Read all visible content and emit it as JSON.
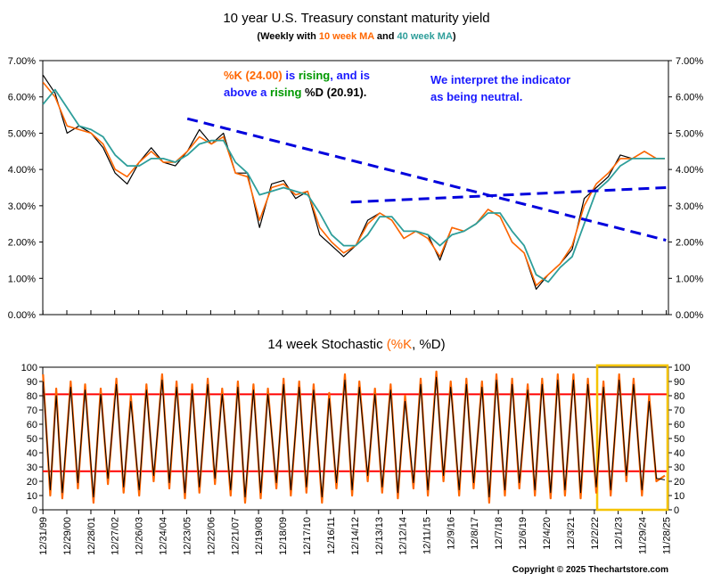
{
  "colors": {
    "price": "#000000",
    "ma10": "#ff6600",
    "ma40": "#2e9e9a",
    "k": "#ff6600",
    "d": "#000000",
    "trendline": "#0000dd",
    "threshold": "#ff0000",
    "highlight": "#f5c400",
    "green": "#009900",
    "blue": "#1a1aff"
  },
  "chart_data": [
    {
      "type": "line",
      "title": "10 year U.S. Treasury constant maturity yield",
      "subtitle_parts": [
        "(Weekly with ",
        "10 week MA",
        " and ",
        "40 week MA",
        ")"
      ],
      "ylim": [
        0,
        7
      ],
      "y_ticks": [
        "0.00%",
        "1.00%",
        "2.00%",
        "3.00%",
        "4.00%",
        "5.00%",
        "6.00%",
        "7.00%"
      ],
      "xlim": [
        1999.99,
        2026.0
      ],
      "grid": false,
      "series": [
        {
          "name": "",
          "x": [
            2000.0,
            2000.5,
            2001.0,
            2001.5,
            2002.0,
            2002.5,
            2003.0,
            2003.5,
            2004.0,
            2004.5,
            2005.0,
            2005.5,
            2006.0,
            2006.5,
            2007.0,
            2007.5,
            2008.0,
            2008.5,
            2009.0,
            2009.5,
            2010.0,
            2010.5,
            2011.0,
            2011.5,
            2012.0,
            2012.5,
            2013.0,
            2013.5,
            2014.0,
            2014.5,
            2015.0,
            2015.5,
            2016.0,
            2016.5,
            2017.0,
            2017.5,
            2018.0,
            2018.5,
            2019.0,
            2019.5,
            2020.0,
            2020.5,
            2021.0,
            2021.5,
            2022.0,
            2022.5,
            2023.0,
            2023.5,
            2024.0,
            2024.5,
            2025.0,
            2025.5,
            2025.85
          ],
          "values": [
            6.6,
            6.1,
            5.0,
            5.2,
            5.0,
            4.6,
            3.9,
            3.6,
            4.2,
            4.6,
            4.2,
            4.1,
            4.5,
            5.1,
            4.7,
            5.0,
            3.9,
            3.9,
            2.4,
            3.6,
            3.7,
            3.2,
            3.4,
            2.2,
            1.9,
            1.6,
            1.9,
            2.6,
            2.8,
            2.6,
            2.1,
            2.3,
            2.2,
            1.5,
            2.4,
            2.3,
            2.5,
            2.9,
            2.7,
            2.0,
            1.7,
            0.7,
            1.1,
            1.4,
            1.8,
            3.2,
            3.5,
            3.8,
            4.4,
            4.3,
            4.5,
            4.3,
            4.3
          ]
        },
        {
          "name": "10 week MA",
          "x": [
            2000.0,
            2000.5,
            2001.0,
            2001.5,
            2002.0,
            2002.5,
            2003.0,
            2003.5,
            2004.0,
            2004.5,
            2005.0,
            2005.5,
            2006.0,
            2006.5,
            2007.0,
            2007.5,
            2008.0,
            2008.5,
            2009.0,
            2009.5,
            2010.0,
            2010.5,
            2011.0,
            2011.5,
            2012.0,
            2012.5,
            2013.0,
            2013.5,
            2014.0,
            2014.5,
            2015.0,
            2015.5,
            2016.0,
            2016.5,
            2017.0,
            2017.5,
            2018.0,
            2018.5,
            2019.0,
            2019.5,
            2020.0,
            2020.5,
            2021.0,
            2021.5,
            2022.0,
            2022.5,
            2023.0,
            2023.5,
            2024.0,
            2024.5,
            2025.0,
            2025.5,
            2025.85
          ],
          "values": [
            6.4,
            6.0,
            5.2,
            5.1,
            5.0,
            4.7,
            4.0,
            3.8,
            4.2,
            4.5,
            4.2,
            4.2,
            4.5,
            4.9,
            4.7,
            4.9,
            3.9,
            3.8,
            2.6,
            3.5,
            3.6,
            3.3,
            3.4,
            2.4,
            2.0,
            1.7,
            1.9,
            2.5,
            2.8,
            2.6,
            2.1,
            2.3,
            2.1,
            1.6,
            2.4,
            2.3,
            2.5,
            2.9,
            2.7,
            2.0,
            1.7,
            0.8,
            1.1,
            1.4,
            1.9,
            3.0,
            3.6,
            3.9,
            4.3,
            4.3,
            4.5,
            4.3,
            4.3
          ]
        },
        {
          "name": "40 week MA",
          "x": [
            2000.0,
            2000.5,
            2001.0,
            2001.5,
            2002.0,
            2002.5,
            2003.0,
            2003.5,
            2004.0,
            2004.5,
            2005.0,
            2005.5,
            2006.0,
            2006.5,
            2007.0,
            2007.5,
            2008.0,
            2008.5,
            2009.0,
            2009.5,
            2010.0,
            2010.5,
            2011.0,
            2011.5,
            2012.0,
            2012.5,
            2013.0,
            2013.5,
            2014.0,
            2014.5,
            2015.0,
            2015.5,
            2016.0,
            2016.5,
            2017.0,
            2017.5,
            2018.0,
            2018.5,
            2019.0,
            2019.5,
            2020.0,
            2020.5,
            2021.0,
            2021.5,
            2022.0,
            2022.5,
            2023.0,
            2023.5,
            2024.0,
            2024.5,
            2025.0,
            2025.5,
            2025.85
          ],
          "values": [
            5.8,
            6.2,
            5.7,
            5.2,
            5.1,
            4.9,
            4.4,
            4.1,
            4.1,
            4.3,
            4.3,
            4.2,
            4.4,
            4.7,
            4.8,
            4.8,
            4.2,
            3.9,
            3.3,
            3.4,
            3.5,
            3.4,
            3.3,
            2.8,
            2.2,
            1.9,
            1.9,
            2.2,
            2.7,
            2.7,
            2.3,
            2.3,
            2.2,
            1.9,
            2.2,
            2.3,
            2.5,
            2.8,
            2.8,
            2.3,
            1.9,
            1.1,
            0.9,
            1.3,
            1.6,
            2.5,
            3.4,
            3.7,
            4.1,
            4.3,
            4.3,
            4.3,
            4.3
          ]
        }
      ],
      "trendlines": [
        {
          "x": [
            2006.0,
            2025.9
          ],
          "values": [
            5.4,
            2.05
          ]
        },
        {
          "x": [
            2012.8,
            2025.9
          ],
          "values": [
            3.1,
            3.5
          ]
        }
      ],
      "annotations": {
        "line1": [
          {
            "text": "%K (24.00)",
            "color": "orange"
          },
          {
            "text": " is ",
            "color": "blue"
          },
          {
            "text": "rising",
            "color": "green"
          },
          {
            "text": ", and is",
            "color": "blue"
          }
        ],
        "line2": [
          {
            "text": "above a ",
            "color": "blue"
          },
          {
            "text": "rising",
            "color": "green"
          },
          {
            "text": " %D ",
            "color": "black"
          },
          {
            "text": "(20.91).",
            "color": "black"
          }
        ],
        "interpretation": [
          "We interpret the indicator",
          "as being neutral."
        ]
      }
    },
    {
      "type": "line",
      "title": "14 week Stochastic",
      "title_parts": [
        "14 week Stochastic ",
        "(",
        "%K",
        ", %D)"
      ],
      "ylim": [
        0,
        100
      ],
      "y_ticks": [
        "0",
        "10",
        "20",
        "30",
        "40",
        "50",
        "60",
        "70",
        "80",
        "90",
        "100"
      ],
      "xlim": [
        1999.99,
        2026.0
      ],
      "threshold_lines": [
        81,
        27
      ],
      "highlight_box_x": [
        2023.0,
        2026.0
      ],
      "series": [
        {
          "name": "%K",
          "x": [
            2000.0,
            2000.3,
            2000.55,
            2000.8,
            2001.15,
            2001.45,
            2001.75,
            2002.1,
            2002.4,
            2002.7,
            2003.05,
            2003.35,
            2003.65,
            2004.0,
            2004.3,
            2004.6,
            2004.95,
            2005.25,
            2005.55,
            2005.9,
            2006.2,
            2006.5,
            2006.85,
            2007.15,
            2007.45,
            2007.8,
            2008.1,
            2008.4,
            2008.75,
            2009.05,
            2009.35,
            2009.7,
            2010.0,
            2010.3,
            2010.65,
            2010.95,
            2011.25,
            2011.6,
            2011.9,
            2012.2,
            2012.55,
            2012.85,
            2013.15,
            2013.5,
            2013.8,
            2014.1,
            2014.45,
            2014.75,
            2015.05,
            2015.4,
            2015.7,
            2016.0,
            2016.35,
            2016.65,
            2016.95,
            2017.3,
            2017.6,
            2017.9,
            2018.25,
            2018.55,
            2018.85,
            2019.2,
            2019.5,
            2019.8,
            2020.15,
            2020.45,
            2020.75,
            2021.1,
            2021.4,
            2021.7,
            2022.05,
            2022.35,
            2022.65,
            2023.0,
            2023.3,
            2023.6,
            2023.95,
            2024.25,
            2024.55,
            2024.9,
            2025.2,
            2025.5,
            2025.85
          ],
          "values": [
            95,
            10,
            85,
            8,
            90,
            15,
            88,
            5,
            85,
            18,
            92,
            12,
            80,
            10,
            88,
            20,
            95,
            15,
            90,
            8,
            88,
            12,
            92,
            18,
            85,
            10,
            90,
            5,
            88,
            8,
            85,
            15,
            92,
            10,
            90,
            12,
            88,
            5,
            82,
            15,
            95,
            10,
            90,
            20,
            85,
            12,
            88,
            8,
            80,
            15,
            92,
            10,
            97,
            20,
            90,
            10,
            92,
            15,
            90,
            5,
            95,
            10,
            92,
            15,
            88,
            10,
            92,
            8,
            95,
            10,
            95,
            8,
            92,
            12,
            90,
            10,
            95,
            20,
            92,
            10,
            80,
            20,
            24
          ]
        },
        {
          "name": "%D",
          "x": [
            2000.0,
            2000.3,
            2000.55,
            2000.8,
            2001.15,
            2001.45,
            2001.75,
            2002.1,
            2002.4,
            2002.7,
            2003.05,
            2003.35,
            2003.65,
            2004.0,
            2004.3,
            2004.6,
            2004.95,
            2005.25,
            2005.55,
            2005.9,
            2006.2,
            2006.5,
            2006.85,
            2007.15,
            2007.45,
            2007.8,
            2008.1,
            2008.4,
            2008.75,
            2009.05,
            2009.35,
            2009.7,
            2010.0,
            2010.3,
            2010.65,
            2010.95,
            2011.25,
            2011.6,
            2011.9,
            2012.2,
            2012.55,
            2012.85,
            2013.15,
            2013.5,
            2013.8,
            2014.1,
            2014.45,
            2014.75,
            2015.05,
            2015.4,
            2015.7,
            2016.0,
            2016.35,
            2016.65,
            2016.95,
            2017.3,
            2017.6,
            2017.9,
            2018.25,
            2018.55,
            2018.85,
            2019.2,
            2019.5,
            2019.8,
            2020.15,
            2020.45,
            2020.75,
            2021.1,
            2021.4,
            2021.7,
            2022.05,
            2022.35,
            2022.65,
            2023.0,
            2023.3,
            2023.6,
            2023.95,
            2024.25,
            2024.55,
            2024.9,
            2025.2,
            2025.5,
            2025.85
          ],
          "values": [
            90,
            14,
            80,
            12,
            86,
            19,
            84,
            9,
            81,
            22,
            88,
            16,
            76,
            14,
            84,
            24,
            91,
            19,
            86,
            12,
            84,
            16,
            88,
            22,
            81,
            14,
            86,
            9,
            84,
            12,
            81,
            19,
            88,
            14,
            86,
            16,
            84,
            9,
            78,
            19,
            91,
            14,
            86,
            24,
            81,
            16,
            84,
            12,
            76,
            19,
            88,
            14,
            93,
            24,
            86,
            14,
            88,
            19,
            86,
            9,
            91,
            14,
            88,
            19,
            84,
            14,
            88,
            12,
            91,
            14,
            91,
            12,
            88,
            16,
            86,
            14,
            91,
            24,
            88,
            14,
            76,
            22,
            21
          ]
        }
      ]
    }
  ],
  "x_axis": {
    "tick_dates": [
      "12/31/99",
      "12/29/00",
      "12/28/01",
      "12/27/02",
      "12/26/03",
      "12/24/04",
      "12/23/05",
      "12/22/06",
      "12/21/07",
      "12/19/08",
      "12/18/09",
      "12/17/10",
      "12/16/11",
      "12/14/12",
      "12/13/13",
      "12/12/14",
      "12/11/15",
      "12/9/16",
      "12/8/17",
      "12/7/18",
      "12/6/19",
      "12/4/20",
      "12/3/21",
      "12/2/22",
      "12/1/23",
      "11/29/24",
      "11/28/25"
    ],
    "tick_years": [
      1999.997,
      2000.99,
      2001.99,
      2002.98,
      2003.98,
      2004.98,
      2005.97,
      2006.97,
      2007.97,
      2008.96,
      2009.96,
      2010.96,
      2011.95,
      2012.95,
      2013.95,
      2014.94,
      2015.94,
      2016.94,
      2017.93,
      2018.93,
      2019.93,
      2020.92,
      2021.92,
      2022.92,
      2023.91,
      2024.91,
      2025.91
    ]
  },
  "copyright": "Copyright © 2025 Thechartstore.com"
}
